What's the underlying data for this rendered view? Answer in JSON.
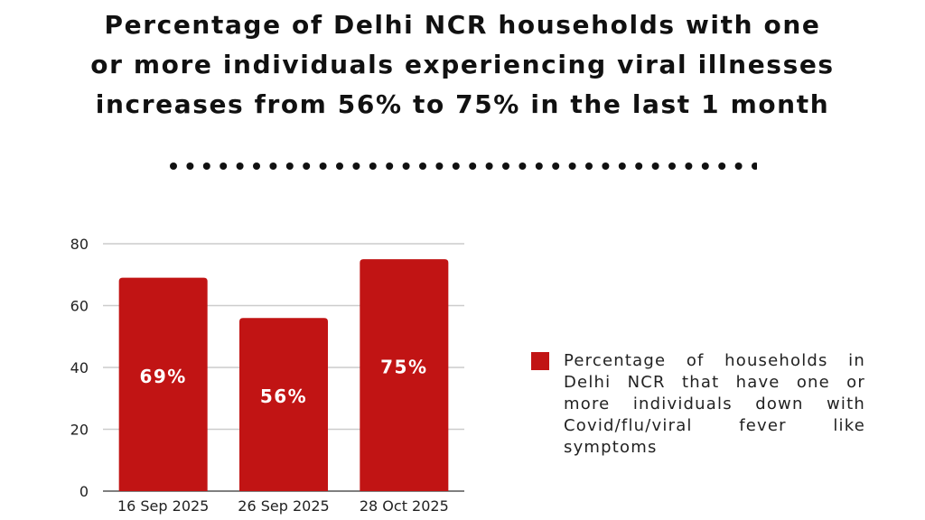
{
  "header": {
    "title_line1": "Percentage of Delhi NCR households with one",
    "title_line2": "or more individuals experiencing viral illnesses",
    "title_line3": "increases from 56% to 75% in the last 1 month"
  },
  "colors": {
    "bar": "#c11414",
    "grid": "#cccccc",
    "axis_text": "#222222",
    "bar_label": "#ffffff"
  },
  "chart_data": {
    "type": "bar",
    "title": "Percentage of Delhi NCR households with one or more individuals experiencing viral illnesses increases from 56% to 75% in the last 1 month",
    "categories": [
      "16 Sep 2025",
      "26 Sep 2025",
      "28 Oct 2025"
    ],
    "values": [
      69,
      56,
      75
    ],
    "data_labels": [
      "69%",
      "56%",
      "75%"
    ],
    "yticks": [
      0,
      20,
      40,
      60,
      80
    ],
    "ylim": [
      0,
      80
    ],
    "xlabel": "",
    "ylabel": "",
    "grid": true,
    "legend": {
      "position": "right",
      "label": "Percentage of households in Delhi NCR that have one or more individuals down with Covid/flu/viral fever like symptoms"
    }
  }
}
